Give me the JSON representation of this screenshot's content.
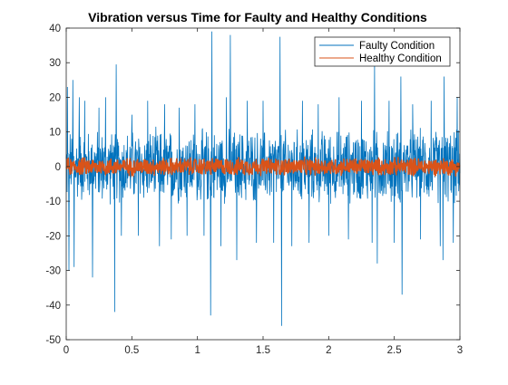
{
  "chart_data": {
    "type": "line",
    "title": "Vibration versus Time for Faulty and Healthy Conditions",
    "xlabel": "",
    "ylabel": "",
    "xlim": [
      0,
      3
    ],
    "ylim": [
      -50,
      40
    ],
    "xticks": [
      0,
      0.5,
      1,
      1.5,
      2,
      2.5,
      3
    ],
    "yticks": [
      -50,
      -40,
      -30,
      -20,
      -10,
      0,
      10,
      20,
      30,
      40
    ],
    "xtick_labels": [
      "0",
      "0.5",
      "1",
      "1.5",
      "2",
      "2.5",
      "3"
    ],
    "ytick_labels": [
      "-50",
      "-40",
      "-30",
      "-20",
      "-10",
      "0",
      "10",
      "20",
      "30",
      "40"
    ],
    "grid": false,
    "legend_position": "top-right",
    "series": [
      {
        "name": "Faulty Condition",
        "color": "#0072BD",
        "band": [
          -12,
          12
        ],
        "peaks": [
          [
            0.01,
            23
          ],
          [
            0.02,
            -30
          ],
          [
            0.05,
            25
          ],
          [
            0.06,
            -29
          ],
          [
            0.1,
            20
          ],
          [
            0.14,
            19
          ],
          [
            0.2,
            -32
          ],
          [
            0.25,
            17
          ],
          [
            0.3,
            20
          ],
          [
            0.37,
            -42
          ],
          [
            0.38,
            29.5
          ],
          [
            0.42,
            -20
          ],
          [
            0.5,
            15
          ],
          [
            0.55,
            -20
          ],
          [
            0.62,
            19
          ],
          [
            0.71,
            -23
          ],
          [
            0.75,
            18
          ],
          [
            0.8,
            -21
          ],
          [
            0.86,
            17
          ],
          [
            0.92,
            -20
          ],
          [
            0.98,
            18
          ],
          [
            1.05,
            -20
          ],
          [
            1.1,
            -43
          ],
          [
            1.11,
            39
          ],
          [
            1.18,
            -23
          ],
          [
            1.22,
            20
          ],
          [
            1.25,
            38
          ],
          [
            1.3,
            -27
          ],
          [
            1.38,
            19
          ],
          [
            1.45,
            -22
          ],
          [
            1.5,
            19
          ],
          [
            1.58,
            -22
          ],
          [
            1.63,
            37.5
          ],
          [
            1.64,
            -46
          ],
          [
            1.72,
            -23
          ],
          [
            1.8,
            19
          ],
          [
            1.85,
            -22
          ],
          [
            1.92,
            18
          ],
          [
            2.0,
            -20
          ],
          [
            2.08,
            20
          ],
          [
            2.15,
            -21
          ],
          [
            2.25,
            19
          ],
          [
            2.33,
            -22
          ],
          [
            2.35,
            30
          ],
          [
            2.37,
            -28
          ],
          [
            2.46,
            19
          ],
          [
            2.5,
            -22
          ],
          [
            2.55,
            26
          ],
          [
            2.56,
            -37
          ],
          [
            2.64,
            18
          ],
          [
            2.7,
            -21
          ],
          [
            2.78,
            19
          ],
          [
            2.85,
            -23
          ],
          [
            2.87,
            -27
          ],
          [
            2.88,
            26
          ],
          [
            2.95,
            -22
          ],
          [
            2.98,
            20
          ]
        ]
      },
      {
        "name": "Healthy Condition",
        "color": "#D95319",
        "band": [
          -3,
          3
        ]
      }
    ]
  }
}
